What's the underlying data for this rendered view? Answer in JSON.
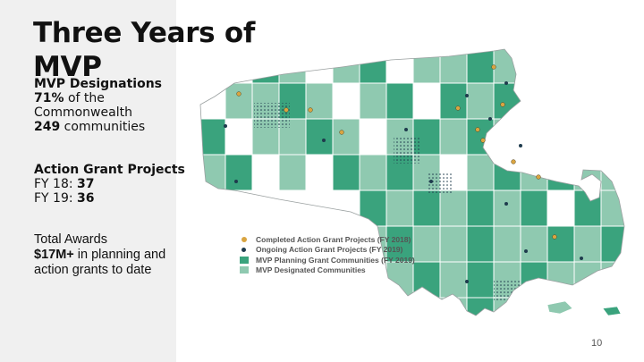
{
  "slide": {
    "title": "Three Years of MVP",
    "page_number": "10"
  },
  "designations": {
    "heading": "MVP Designations",
    "percent": "71%",
    "percent_rest": " of the",
    "commonwealth": "Commonwealth",
    "communities_count": "249",
    "communities_rest": " communities"
  },
  "action_grants": {
    "heading": "Action Grant Projects",
    "fy18_label": "FY 18: ",
    "fy18_value": "37",
    "fy19_label": "FY 19: ",
    "fy19_value": "36"
  },
  "awards": {
    "heading": "Total Awards",
    "amount": "$17M+",
    "amount_rest": " in planning and",
    "line2": "action grants to date"
  },
  "legend": [
    {
      "label": "Completed Action Grant Projects (FY 2018)",
      "color": "#d9a441",
      "marker": "dot"
    },
    {
      "label": "Ongoing Action Grant Projects (FY 2019)",
      "color": "#1f3b4d",
      "marker": "dot"
    },
    {
      "label": "MVP Planning Grant Communities (FY 2019)",
      "color": "#3aa37d",
      "marker": "square"
    },
    {
      "label": "MVP Designated Communities",
      "color": "#8fc9b0",
      "marker": "square"
    }
  ],
  "colors": {
    "designated": "#8fc9b0",
    "planning": "#3aa37d",
    "other": "#ffffff",
    "border": "#9aa0a0",
    "completed_dot": "#d9a441",
    "ongoing_dot": "#1f3b4d"
  }
}
